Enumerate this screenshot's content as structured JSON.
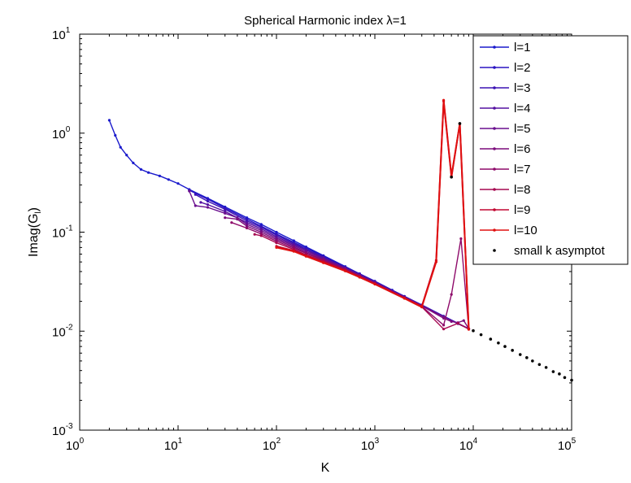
{
  "chart_data": {
    "type": "line",
    "title": "Spherical Harmonic index  λ=1",
    "xlabel": "K",
    "ylabel_main": "Imag(G",
    "ylabel_sub": "l",
    "ylabel_end": ")",
    "xscale": "log",
    "yscale": "log",
    "xlim": [
      1,
      100000
    ],
    "ylim": [
      0.001,
      10
    ],
    "x_ticks": [
      {
        "base": "10",
        "exp": "0",
        "value": 1
      },
      {
        "base": "10",
        "exp": "1",
        "value": 10
      },
      {
        "base": "10",
        "exp": "2",
        "value": 100
      },
      {
        "base": "10",
        "exp": "3",
        "value": 1000
      },
      {
        "base": "10",
        "exp": "4",
        "value": 10000
      },
      {
        "base": "10",
        "exp": "5",
        "value": 100000
      }
    ],
    "y_ticks": [
      {
        "base": "10",
        "exp": "-3",
        "value": 0.001
      },
      {
        "base": "10",
        "exp": "-2",
        "value": 0.01
      },
      {
        "base": "10",
        "exp": "-1",
        "value": 0.1
      },
      {
        "base": "10",
        "exp": "0",
        "value": 1
      },
      {
        "base": "10",
        "exp": "1",
        "value": 10
      }
    ],
    "grid": false,
    "legend_position": "top-right",
    "series": [
      {
        "name": "l=1",
        "color": "#1a1acc",
        "points": [
          [
            2,
            1.35
          ],
          [
            2.3,
            0.95
          ],
          [
            2.6,
            0.72
          ],
          [
            3.0,
            0.6
          ],
          [
            3.5,
            0.5
          ],
          [
            4.2,
            0.43
          ],
          [
            5,
            0.4
          ],
          [
            6.5,
            0.37
          ],
          [
            8,
            0.34
          ],
          [
            10,
            0.31
          ],
          [
            13,
            0.27
          ],
          [
            20,
            0.22
          ],
          [
            30,
            0.18
          ],
          [
            50,
            0.14
          ],
          [
            70,
            0.12
          ],
          [
            100,
            0.1
          ],
          [
            150,
            0.082
          ],
          [
            200,
            0.071
          ],
          [
            300,
            0.058
          ],
          [
            500,
            0.045
          ],
          [
            700,
            0.038
          ],
          [
            1000,
            0.032
          ],
          [
            1500,
            0.026
          ],
          [
            2000,
            0.0225
          ],
          [
            3000,
            0.0184
          ],
          [
            5000,
            0.0142
          ],
          [
            7000,
            0.012
          ],
          [
            9000,
            0.0106
          ]
        ]
      },
      {
        "name": "l=2",
        "color": "#2a14c2",
        "points": [
          [
            13,
            0.265
          ],
          [
            20,
            0.215
          ],
          [
            30,
            0.175
          ],
          [
            50,
            0.135
          ],
          [
            70,
            0.115
          ],
          [
            100,
            0.096
          ],
          [
            150,
            0.079
          ],
          [
            200,
            0.069
          ],
          [
            300,
            0.057
          ],
          [
            500,
            0.044
          ],
          [
            700,
            0.038
          ],
          [
            1000,
            0.0318
          ],
          [
            2000,
            0.0224
          ],
          [
            3000,
            0.0183
          ],
          [
            5000,
            0.0141
          ],
          [
            7000,
            0.0119
          ],
          [
            9000,
            0.0106
          ]
        ]
      },
      {
        "name": "l=3",
        "color": "#3b12b4",
        "points": [
          [
            15,
            0.24
          ],
          [
            20,
            0.205
          ],
          [
            30,
            0.17
          ],
          [
            50,
            0.13
          ],
          [
            70,
            0.112
          ],
          [
            100,
            0.093
          ],
          [
            150,
            0.077
          ],
          [
            200,
            0.067
          ],
          [
            300,
            0.056
          ],
          [
            500,
            0.044
          ],
          [
            700,
            0.0375
          ],
          [
            1000,
            0.0315
          ],
          [
            2000,
            0.0223
          ],
          [
            3000,
            0.0182
          ],
          [
            5000,
            0.0141
          ],
          [
            7000,
            0.0119
          ],
          [
            9000,
            0.0106
          ]
        ]
      },
      {
        "name": "l=4",
        "color": "#5510a0",
        "points": [
          [
            17,
            0.2
          ],
          [
            20,
            0.19
          ],
          [
            30,
            0.162
          ],
          [
            50,
            0.125
          ],
          [
            70,
            0.108
          ],
          [
            100,
            0.09
          ],
          [
            150,
            0.075
          ],
          [
            200,
            0.066
          ],
          [
            300,
            0.055
          ],
          [
            500,
            0.0435
          ],
          [
            700,
            0.037
          ],
          [
            1000,
            0.0312
          ],
          [
            2000,
            0.0222
          ],
          [
            3000,
            0.0182
          ],
          [
            5000,
            0.014
          ],
          [
            7000,
            0.0119
          ],
          [
            9000,
            0.0106
          ]
        ]
      },
      {
        "name": "l=5",
        "color": "#6a0e8e",
        "points": [
          [
            13,
            0.26
          ],
          [
            15,
            0.185
          ],
          [
            20,
            0.178
          ],
          [
            30,
            0.155
          ],
          [
            40,
            0.14
          ],
          [
            50,
            0.12
          ],
          [
            70,
            0.104
          ],
          [
            100,
            0.087
          ],
          [
            150,
            0.073
          ],
          [
            200,
            0.064
          ],
          [
            300,
            0.054
          ],
          [
            500,
            0.043
          ],
          [
            700,
            0.0368
          ],
          [
            1000,
            0.031
          ],
          [
            2000,
            0.0221
          ],
          [
            3000,
            0.0181
          ],
          [
            5000,
            0.014
          ],
          [
            7000,
            0.0119
          ],
          [
            9000,
            0.0106
          ]
        ]
      },
      {
        "name": "l=6",
        "color": "#7c0c7c",
        "points": [
          [
            30,
            0.14
          ],
          [
            40,
            0.135
          ],
          [
            50,
            0.115
          ],
          [
            70,
            0.1
          ],
          [
            100,
            0.084
          ],
          [
            150,
            0.071
          ],
          [
            200,
            0.062
          ],
          [
            300,
            0.053
          ],
          [
            500,
            0.0425
          ],
          [
            700,
            0.0365
          ],
          [
            1000,
            0.0308
          ],
          [
            2000,
            0.022
          ],
          [
            3000,
            0.018
          ],
          [
            5000,
            0.0135
          ],
          [
            6000,
            0.0125
          ],
          [
            7000,
            0.0122
          ],
          [
            8000,
            0.0128
          ],
          [
            9000,
            0.0106
          ]
        ]
      },
      {
        "name": "l=7",
        "color": "#8e0a6a",
        "points": [
          [
            35,
            0.125
          ],
          [
            50,
            0.11
          ],
          [
            70,
            0.096
          ],
          [
            100,
            0.081
          ],
          [
            150,
            0.069
          ],
          [
            200,
            0.061
          ],
          [
            300,
            0.052
          ],
          [
            500,
            0.042
          ],
          [
            700,
            0.036
          ],
          [
            1000,
            0.0305
          ],
          [
            2000,
            0.0218
          ],
          [
            3000,
            0.0178
          ],
          [
            5000,
            0.0115
          ],
          [
            6000,
            0.0235
          ],
          [
            7500,
            0.086
          ],
          [
            9000,
            0.0105
          ]
        ]
      },
      {
        "name": "l=8",
        "color": "#a60850",
        "points": [
          [
            60,
            0.095
          ],
          [
            70,
            0.092
          ],
          [
            100,
            0.078
          ],
          [
            150,
            0.067
          ],
          [
            200,
            0.059
          ],
          [
            300,
            0.051
          ],
          [
            500,
            0.0415
          ],
          [
            700,
            0.0356
          ],
          [
            1000,
            0.0302
          ],
          [
            2000,
            0.0216
          ],
          [
            3000,
            0.0176
          ],
          [
            5000,
            0.0105
          ],
          [
            7000,
            0.012
          ],
          [
            9000,
            0.0105
          ]
        ]
      },
      {
        "name": "l=9",
        "color": "#c20630",
        "points": [
          [
            100,
            0.072
          ],
          [
            150,
            0.065
          ],
          [
            200,
            0.058
          ],
          [
            300,
            0.05
          ],
          [
            500,
            0.041
          ],
          [
            700,
            0.0352
          ],
          [
            1000,
            0.03
          ],
          [
            2000,
            0.0215
          ],
          [
            3000,
            0.0178
          ],
          [
            4200,
            0.052
          ],
          [
            5000,
            2.1
          ],
          [
            6000,
            0.36
          ],
          [
            7300,
            1.25
          ],
          [
            9000,
            0.0105
          ]
        ]
      },
      {
        "name": "l=10",
        "color": "#e01010",
        "points": [
          [
            100,
            0.07
          ],
          [
            150,
            0.064
          ],
          [
            200,
            0.057
          ],
          [
            300,
            0.049
          ],
          [
            500,
            0.0405
          ],
          [
            700,
            0.035
          ],
          [
            1000,
            0.0298
          ],
          [
            2000,
            0.0214
          ],
          [
            3000,
            0.0175
          ],
          [
            4200,
            0.05
          ],
          [
            5000,
            2.15
          ],
          [
            6000,
            0.37
          ],
          [
            7300,
            1.25
          ],
          [
            9000,
            0.0104
          ]
        ]
      }
    ],
    "asymptote": {
      "name": "small k asymptot",
      "color": "#000000",
      "points": [
        [
          6000,
          0.36
        ],
        [
          7300,
          1.25
        ],
        [
          10000,
          0.0101
        ],
        [
          12000,
          0.0092
        ],
        [
          15000,
          0.0083
        ],
        [
          18000,
          0.0076
        ],
        [
          21000,
          0.007
        ],
        [
          25000,
          0.0064
        ],
        [
          30000,
          0.0058
        ],
        [
          35000,
          0.0054
        ],
        [
          40000,
          0.005
        ],
        [
          47000,
          0.0046
        ],
        [
          55000,
          0.0043
        ],
        [
          65000,
          0.0039
        ],
        [
          75000,
          0.0037
        ],
        [
          85000,
          0.0034
        ],
        [
          100000,
          0.0032
        ]
      ]
    }
  }
}
